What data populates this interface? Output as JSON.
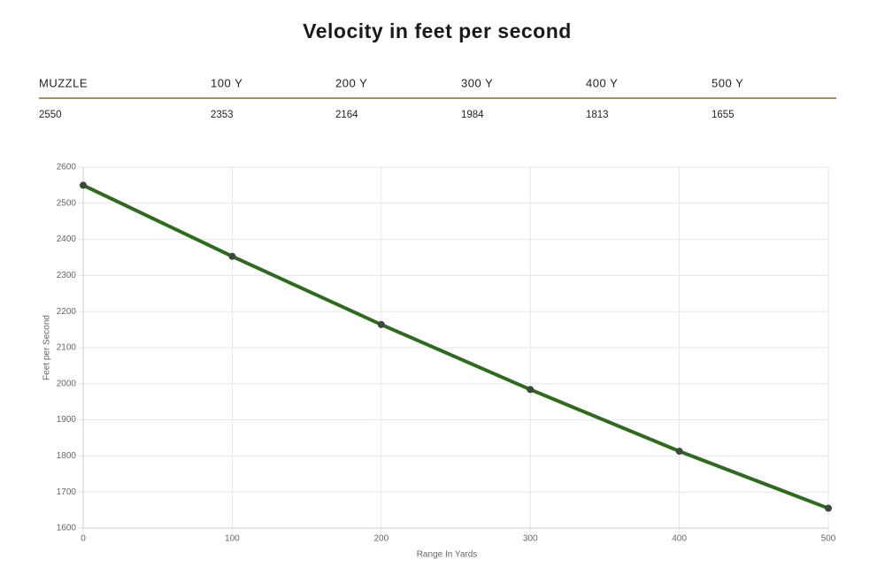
{
  "title": "Velocity in feet per second",
  "table": {
    "headers": [
      "MUZZLE",
      "100 Y",
      "200 Y",
      "300 Y",
      "400 Y",
      "500 Y"
    ],
    "rows": [
      [
        2550,
        2353,
        2164,
        1984,
        1813,
        1655
      ]
    ]
  },
  "chart_data": {
    "type": "line",
    "x": [
      0,
      100,
      200,
      300,
      400,
      500
    ],
    "series": [
      {
        "color": "#2f6b1f",
        "values": [
          2550,
          2353,
          2164,
          1984,
          1813,
          1655
        ]
      }
    ],
    "xlim": [
      0,
      500
    ],
    "xticks": [
      0,
      100,
      200,
      300,
      400,
      500
    ],
    "ylim": [
      1600,
      2600
    ],
    "yticks": [
      1600,
      1700,
      1800,
      1900,
      2000,
      2100,
      2200,
      2300,
      2400,
      2500,
      2600
    ],
    "xlabel": "Range In Yards",
    "ylabel": "Feet per Second",
    "grid": true
  }
}
